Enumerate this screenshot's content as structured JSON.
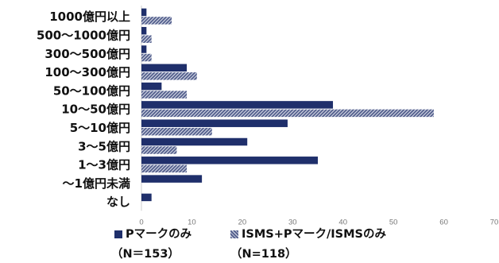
{
  "chart_data": {
    "type": "bar",
    "orientation": "horizontal",
    "categories": [
      "1000億円以上",
      "500〜1000億円",
      "300〜500億円",
      "100〜300億円",
      "50〜100億円",
      "10〜50億円",
      "5〜10億円",
      "3〜5億円",
      "1〜3億円",
      "〜1億円未満",
      "なし"
    ],
    "series": [
      {
        "name": "Pマークのみ",
        "values": [
          1,
          1,
          1,
          9,
          4,
          38,
          29,
          21,
          35,
          12,
          2
        ],
        "color": "#1f2f6b",
        "pattern": "solid"
      },
      {
        "name": "ISMS+Pマーク/ISMSのみ",
        "values": [
          6,
          2,
          2,
          11,
          9,
          58,
          14,
          7,
          9,
          0,
          0
        ],
        "color": "#56628f",
        "pattern": "hatched"
      }
    ],
    "xlim": [
      0,
      70
    ],
    "xticks": [
      "0",
      "10",
      "20",
      "30",
      "40",
      "50",
      "60",
      "70"
    ],
    "grid": false,
    "legend_position": "bottom"
  },
  "legend": {
    "series1_label": "Pマークのみ",
    "series1_n": "（N＝153）",
    "series2_label": "ISMS+Pマーク/ISMSのみ",
    "series2_n": "（N=118）"
  }
}
